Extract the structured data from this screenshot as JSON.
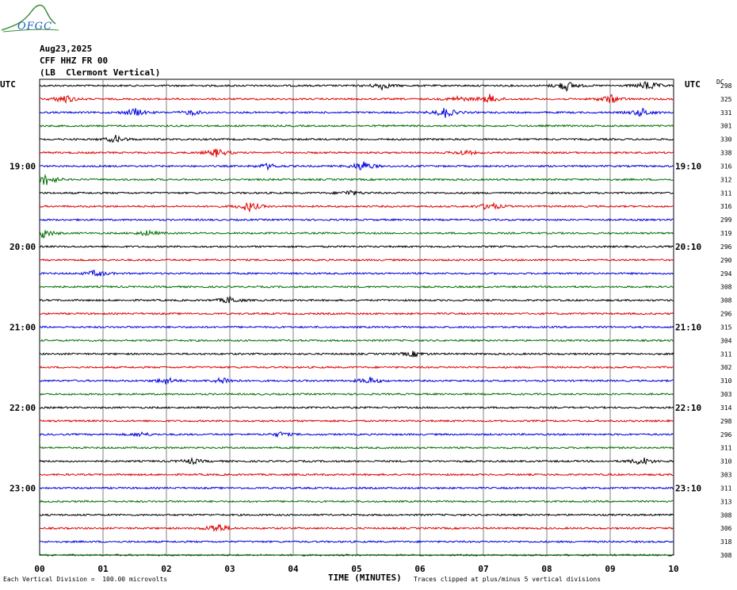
{
  "logo": {
    "text": "OFGC",
    "color_green": "#3a8f3a",
    "color_blue": "#1a5fb4"
  },
  "header": {
    "date": "Aug23,2025",
    "station": "CFF HHZ FR 00",
    "location": "(LB  Clermont Vertical)"
  },
  "utc_left": "UTC",
  "utc_right": "UTC",
  "dc_label": "DC",
  "footer": {
    "division": "Each Vertical Division =  100.00 microvolts",
    "xlabel": "TIME (MINUTES)",
    "clipped": "Traces clipped at plus/minus 5 vertical divisions"
  },
  "colors": {
    "black": "#000000",
    "red": "#e00000",
    "blue": "#0000e0",
    "green": "#007000",
    "grid": "#808080"
  },
  "chart_data": {
    "type": "line",
    "title": "CFF HHZ FR 00 (LB  Clermont Vertical)",
    "xlabel": "TIME (MINUTES)",
    "ylabel": "",
    "x_ticks": [
      "00",
      "01",
      "02",
      "03",
      "04",
      "05",
      "06",
      "07",
      "08",
      "09",
      "10"
    ],
    "xlim": [
      0,
      10
    ],
    "left_time_labels": [
      {
        "row": 6,
        "label": "19:00"
      },
      {
        "row": 12,
        "label": "20:00"
      },
      {
        "row": 18,
        "label": "21:00"
      },
      {
        "row": 24,
        "label": "22:00"
      },
      {
        "row": 30,
        "label": "23:00"
      }
    ],
    "right_time_labels": [
      {
        "row": 6,
        "label": "19:10"
      },
      {
        "row": 12,
        "label": "20:10"
      },
      {
        "row": 18,
        "label": "21:10"
      },
      {
        "row": 24,
        "label": "22:10"
      },
      {
        "row": 30,
        "label": "23:10"
      }
    ],
    "trace_colors": [
      "black",
      "red",
      "blue",
      "green"
    ],
    "dc_offsets": [
      "298",
      "325",
      "331",
      "301",
      "330",
      "338",
      "316",
      "312",
      "311",
      "316",
      "299",
      "319",
      "296",
      "290",
      "294",
      "308",
      "308",
      "296",
      "315",
      "304",
      "311",
      "302",
      "310",
      "303",
      "314",
      "298",
      "296",
      "311",
      "310",
      "303",
      "311",
      "313",
      "308",
      "306",
      "318",
      "308"
    ],
    "events": [
      {
        "row": 0,
        "minute": 5.4,
        "amp": 2
      },
      {
        "row": 0,
        "minute": 8.3,
        "amp": 3
      },
      {
        "row": 0,
        "minute": 9.6,
        "amp": 3
      },
      {
        "row": 1,
        "minute": 0.4,
        "amp": 2.5
      },
      {
        "row": 1,
        "minute": 7.1,
        "amp": 2.5
      },
      {
        "row": 1,
        "minute": 9.0,
        "amp": 2.5
      },
      {
        "row": 1,
        "minute": 6.6,
        "amp": 1.5
      },
      {
        "row": 2,
        "minute": 1.5,
        "amp": 2.5
      },
      {
        "row": 2,
        "minute": 6.4,
        "amp": 3
      },
      {
        "row": 2,
        "minute": 9.5,
        "amp": 2.5
      },
      {
        "row": 2,
        "minute": 2.4,
        "amp": 1.5
      },
      {
        "row": 4,
        "minute": 1.2,
        "amp": 2
      },
      {
        "row": 5,
        "minute": 2.8,
        "amp": 2.5
      },
      {
        "row": 5,
        "minute": 6.7,
        "amp": 1.5
      },
      {
        "row": 6,
        "minute": 5.1,
        "amp": 3
      },
      {
        "row": 6,
        "minute": 3.6,
        "amp": 1.5
      },
      {
        "row": 7,
        "minute": 0.1,
        "amp": 3.5
      },
      {
        "row": 8,
        "minute": 4.9,
        "amp": 1.5
      },
      {
        "row": 9,
        "minute": 3.3,
        "amp": 3
      },
      {
        "row": 9,
        "minute": 7.1,
        "amp": 2.5
      },
      {
        "row": 11,
        "minute": 0.05,
        "amp": 3
      },
      {
        "row": 11,
        "minute": 1.7,
        "amp": 1.5
      },
      {
        "row": 14,
        "minute": 0.9,
        "amp": 2
      },
      {
        "row": 16,
        "minute": 3.0,
        "amp": 2
      },
      {
        "row": 20,
        "minute": 5.9,
        "amp": 1.5
      },
      {
        "row": 22,
        "minute": 2.0,
        "amp": 2
      },
      {
        "row": 22,
        "minute": 2.9,
        "amp": 2
      },
      {
        "row": 22,
        "minute": 5.2,
        "amp": 2
      },
      {
        "row": 26,
        "minute": 1.6,
        "amp": 1.2
      },
      {
        "row": 26,
        "minute": 3.8,
        "amp": 1.2
      },
      {
        "row": 28,
        "minute": 2.4,
        "amp": 1.5
      },
      {
        "row": 28,
        "minute": 9.5,
        "amp": 2.5
      },
      {
        "row": 33,
        "minute": 2.8,
        "amp": 3
      }
    ]
  }
}
